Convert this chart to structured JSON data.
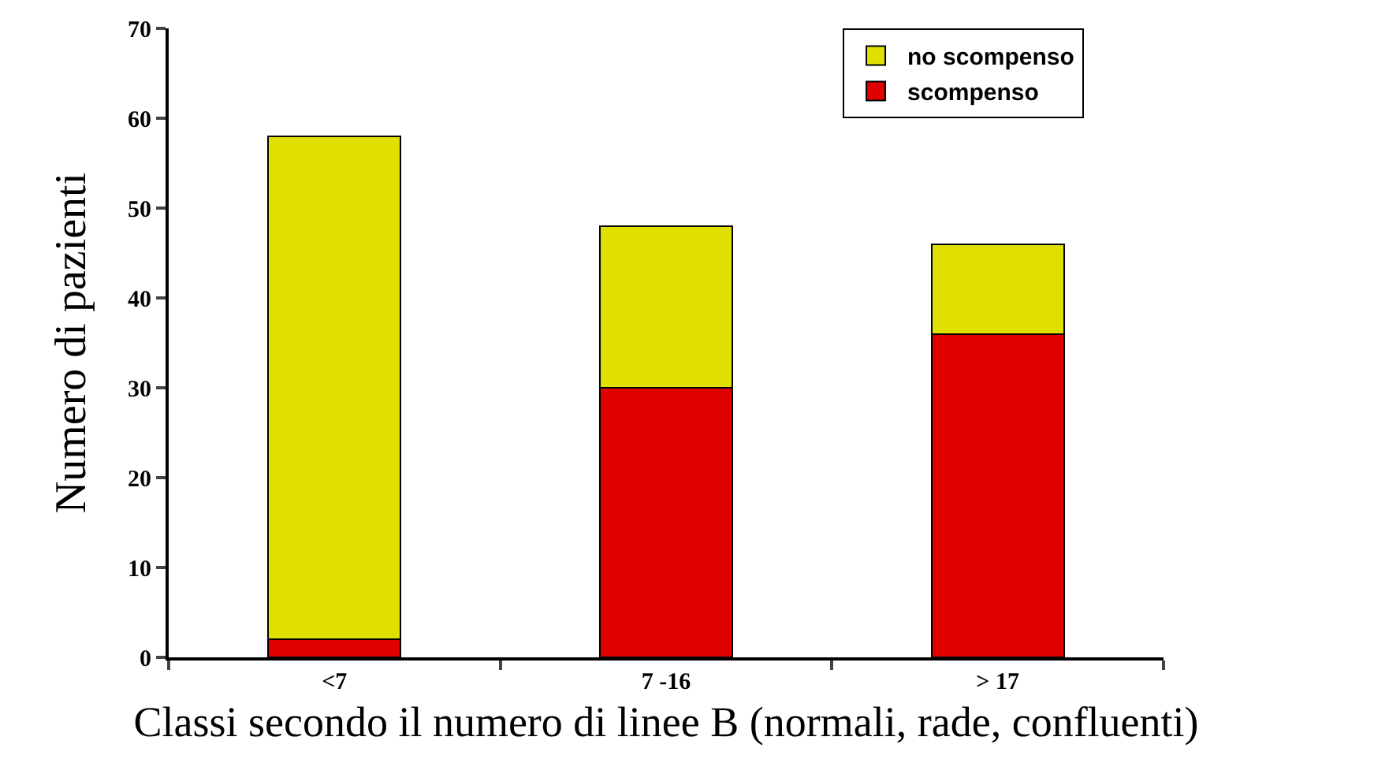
{
  "chart_data": {
    "type": "bar",
    "stacked": true,
    "xlabel": "Classi secondo il numero di linee B (normali, rade, confluenti)",
    "ylabel": "Numero di pazienti",
    "categories": [
      "<7",
      "7 -16",
      "> 17"
    ],
    "series": [
      {
        "name": "scompenso",
        "color": "#e00000",
        "values": [
          2,
          30,
          36
        ]
      },
      {
        "name": "no scompenso",
        "color": "#e0e000",
        "values": [
          56,
          18,
          10
        ]
      }
    ],
    "ylim": [
      0,
      70
    ],
    "yticks": [
      0,
      10,
      20,
      30,
      40,
      50,
      60,
      70
    ],
    "legend": "top right"
  }
}
